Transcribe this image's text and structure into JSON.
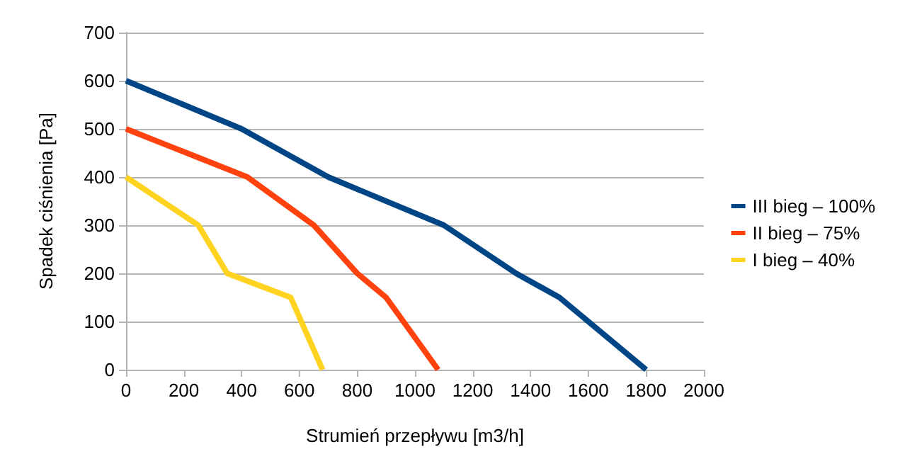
{
  "chart_data": {
    "type": "line",
    "xlabel": "Strumień przepływu [m3/h]",
    "ylabel": "Spadek ciśnienia [Pa]",
    "xlim": [
      0,
      2000
    ],
    "xticks": [
      0,
      200,
      400,
      600,
      800,
      1000,
      1200,
      1400,
      1600,
      1800,
      2000
    ],
    "ylim": [
      0,
      700
    ],
    "yticks": [
      0,
      100,
      200,
      300,
      400,
      500,
      600,
      700
    ],
    "grid": "y",
    "legend": "right",
    "marker": "none",
    "line_style": "solid",
    "series": [
      {
        "name": "III bieg – 100%",
        "color": "#004586",
        "x": [
          0,
          400,
          700,
          1100,
          1350,
          1500,
          1800
        ],
        "values": [
          600,
          500,
          400,
          300,
          200,
          150,
          0
        ]
      },
      {
        "name": "II bieg – 75%",
        "color": "#ff420e",
        "x": [
          0,
          420,
          650,
          800,
          900,
          1080
        ],
        "values": [
          500,
          400,
          300,
          200,
          150,
          0
        ]
      },
      {
        "name": "I bieg – 40%",
        "color": "#ffd320",
        "x": [
          0,
          250,
          350,
          570,
          680
        ],
        "values": [
          400,
          300,
          200,
          150,
          0
        ]
      }
    ]
  }
}
